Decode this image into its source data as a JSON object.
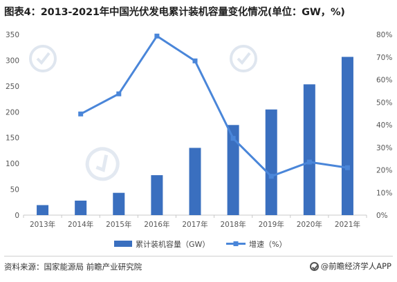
{
  "title": "图表4：2013-2021年中国光伏发电累计装机容量变化情况(单位：GW，%)",
  "source": "资料来源：国家能源局 前瞻产业研究院",
  "brand": "@前瞻经济学人APP",
  "watermark_text": "前瞻产业研究院",
  "colors": {
    "bar": "#3a6fbf",
    "line": "#4a86d9",
    "axis": "#c8c8c8"
  },
  "chart_data": {
    "type": "bar",
    "categories": [
      "2013年",
      "2014年",
      "2015年",
      "2016年",
      "2017年",
      "2018年",
      "2019年",
      "2020年",
      "2021年"
    ],
    "series": [
      {
        "name": "累计装机容量（GW）",
        "type": "bar",
        "axis": "left",
        "values": [
          19.4,
          28.1,
          43.2,
          77.4,
          130.3,
          174.6,
          204.7,
          253.4,
          306.6
        ]
      },
      {
        "name": "增速（%）",
        "type": "line",
        "axis": "right",
        "values": [
          null,
          44.8,
          53.7,
          79.3,
          68.3,
          34.0,
          17.2,
          23.5,
          21.0
        ]
      }
    ],
    "left_axis": {
      "min": 0,
      "max": 350,
      "ticks": [
        0,
        50,
        100,
        150,
        200,
        250,
        300,
        350
      ]
    },
    "right_axis": {
      "min": 0,
      "max": 80,
      "ticks": [
        "0%",
        "10%",
        "20%",
        "30%",
        "40%",
        "50%",
        "60%",
        "70%",
        "80%"
      ]
    },
    "grid": false,
    "legend_position": "bottom-center"
  }
}
